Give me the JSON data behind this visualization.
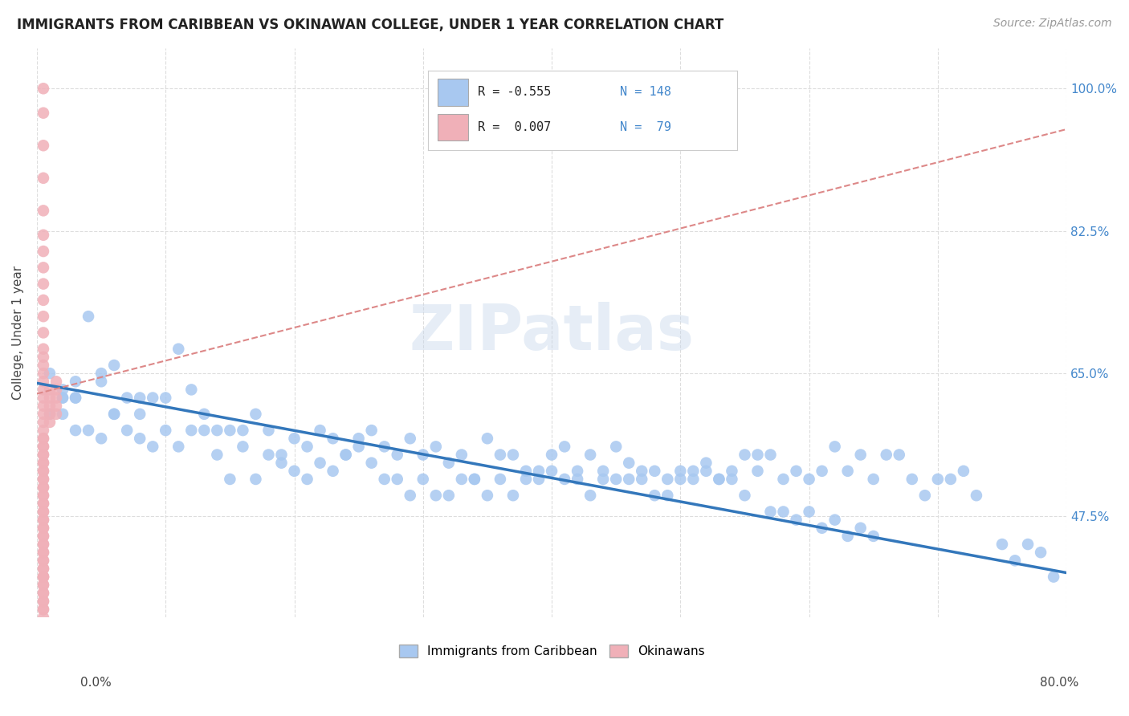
{
  "title": "IMMIGRANTS FROM CARIBBEAN VS OKINAWAN COLLEGE, UNDER 1 YEAR CORRELATION CHART",
  "source": "Source: ZipAtlas.com",
  "ylabel": "College, Under 1 year",
  "watermark": "ZIPatlas",
  "legend_blue_R": "-0.555",
  "legend_blue_N": "148",
  "legend_pink_R": "0.007",
  "legend_pink_N": "79",
  "ytick_labels": [
    "100.0%",
    "82.5%",
    "65.0%",
    "47.5%"
  ],
  "ytick_values": [
    1.0,
    0.825,
    0.65,
    0.475
  ],
  "xlim": [
    0.0,
    0.8
  ],
  "ylim": [
    0.35,
    1.05
  ],
  "blue_color": "#a8c8f0",
  "pink_color": "#f0b0b8",
  "blue_line_color": "#3377bb",
  "pink_line_color": "#dd8888",
  "background_color": "#ffffff",
  "grid_color": "#dddddd",
  "blue_scatter_x": [
    0.02,
    0.03,
    0.04,
    0.05,
    0.01,
    0.02,
    0.03,
    0.06,
    0.08,
    0.02,
    0.03,
    0.05,
    0.06,
    0.07,
    0.08,
    0.09,
    0.1,
    0.11,
    0.12,
    0.13,
    0.14,
    0.15,
    0.16,
    0.17,
    0.18,
    0.19,
    0.2,
    0.21,
    0.22,
    0.23,
    0.24,
    0.25,
    0.26,
    0.27,
    0.28,
    0.29,
    0.3,
    0.31,
    0.32,
    0.33,
    0.34,
    0.35,
    0.36,
    0.37,
    0.38,
    0.39,
    0.4,
    0.41,
    0.42,
    0.43,
    0.44,
    0.45,
    0.46,
    0.47,
    0.48,
    0.49,
    0.5,
    0.51,
    0.52,
    0.53,
    0.54,
    0.55,
    0.56,
    0.57,
    0.58,
    0.59,
    0.6,
    0.61,
    0.62,
    0.63,
    0.64,
    0.65,
    0.66,
    0.67,
    0.68,
    0.69,
    0.7,
    0.71,
    0.72,
    0.73,
    0.01,
    0.02,
    0.03,
    0.04,
    0.05,
    0.06,
    0.07,
    0.08,
    0.09,
    0.1,
    0.11,
    0.12,
    0.13,
    0.14,
    0.15,
    0.16,
    0.17,
    0.18,
    0.19,
    0.2,
    0.21,
    0.22,
    0.23,
    0.24,
    0.25,
    0.26,
    0.27,
    0.28,
    0.29,
    0.3,
    0.31,
    0.32,
    0.33,
    0.34,
    0.35,
    0.36,
    0.37,
    0.38,
    0.39,
    0.4,
    0.41,
    0.42,
    0.43,
    0.44,
    0.45,
    0.46,
    0.47,
    0.48,
    0.49,
    0.5,
    0.51,
    0.52,
    0.53,
    0.54,
    0.55,
    0.56,
    0.57,
    0.58,
    0.59,
    0.6,
    0.61,
    0.62,
    0.63,
    0.64,
    0.65,
    0.75,
    0.76,
    0.77,
    0.78,
    0.79
  ],
  "blue_scatter_y": [
    0.62,
    0.64,
    0.58,
    0.65,
    0.6,
    0.63,
    0.62,
    0.66,
    0.62,
    0.6,
    0.62,
    0.57,
    0.6,
    0.62,
    0.6,
    0.62,
    0.58,
    0.68,
    0.63,
    0.6,
    0.58,
    0.58,
    0.56,
    0.6,
    0.58,
    0.55,
    0.57,
    0.56,
    0.58,
    0.57,
    0.55,
    0.57,
    0.58,
    0.56,
    0.55,
    0.57,
    0.55,
    0.56,
    0.54,
    0.55,
    0.52,
    0.57,
    0.55,
    0.55,
    0.53,
    0.53,
    0.55,
    0.56,
    0.53,
    0.55,
    0.53,
    0.56,
    0.54,
    0.52,
    0.53,
    0.52,
    0.53,
    0.53,
    0.54,
    0.52,
    0.53,
    0.55,
    0.55,
    0.55,
    0.52,
    0.53,
    0.52,
    0.53,
    0.56,
    0.53,
    0.55,
    0.52,
    0.55,
    0.55,
    0.52,
    0.5,
    0.52,
    0.52,
    0.53,
    0.5,
    0.65,
    0.62,
    0.58,
    0.72,
    0.64,
    0.6,
    0.58,
    0.57,
    0.56,
    0.62,
    0.56,
    0.58,
    0.58,
    0.55,
    0.52,
    0.58,
    0.52,
    0.55,
    0.54,
    0.53,
    0.52,
    0.54,
    0.53,
    0.55,
    0.56,
    0.54,
    0.52,
    0.52,
    0.5,
    0.52,
    0.5,
    0.5,
    0.52,
    0.52,
    0.5,
    0.52,
    0.5,
    0.52,
    0.52,
    0.53,
    0.52,
    0.52,
    0.5,
    0.52,
    0.52,
    0.52,
    0.53,
    0.5,
    0.5,
    0.52,
    0.52,
    0.53,
    0.52,
    0.52,
    0.5,
    0.53,
    0.48,
    0.48,
    0.47,
    0.48,
    0.46,
    0.47,
    0.45,
    0.46,
    0.45,
    0.44,
    0.42,
    0.44,
    0.43,
    0.4
  ],
  "pink_scatter_x": [
    0.005,
    0.005,
    0.005,
    0.005,
    0.005,
    0.005,
    0.005,
    0.005,
    0.005,
    0.005,
    0.005,
    0.005,
    0.005,
    0.005,
    0.005,
    0.005,
    0.005,
    0.005,
    0.005,
    0.005,
    0.005,
    0.005,
    0.005,
    0.005,
    0.005,
    0.005,
    0.005,
    0.005,
    0.005,
    0.005,
    0.005,
    0.005,
    0.005,
    0.005,
    0.005,
    0.005,
    0.005,
    0.005,
    0.005,
    0.005,
    0.005,
    0.005,
    0.005,
    0.005,
    0.005,
    0.005,
    0.005,
    0.005,
    0.005,
    0.005,
    0.01,
    0.01,
    0.01,
    0.01,
    0.01,
    0.015,
    0.015,
    0.015,
    0.015,
    0.015,
    0.005,
    0.005,
    0.005,
    0.005,
    0.005,
    0.005,
    0.005,
    0.005,
    0.005,
    0.005,
    0.005,
    0.005,
    0.005,
    0.005,
    0.005,
    0.005,
    0.005,
    0.005,
    0.005
  ],
  "pink_scatter_y": [
    1.0,
    0.97,
    0.93,
    0.89,
    0.85,
    0.82,
    0.8,
    0.78,
    0.76,
    0.74,
    0.72,
    0.7,
    0.68,
    0.67,
    0.66,
    0.65,
    0.64,
    0.63,
    0.62,
    0.61,
    0.6,
    0.59,
    0.57,
    0.56,
    0.55,
    0.54,
    0.53,
    0.52,
    0.51,
    0.5,
    0.49,
    0.48,
    0.47,
    0.46,
    0.45,
    0.44,
    0.43,
    0.42,
    0.41,
    0.4,
    0.39,
    0.38,
    0.37,
    0.36,
    0.35,
    0.36,
    0.37,
    0.38,
    0.39,
    0.4,
    0.63,
    0.62,
    0.61,
    0.6,
    0.59,
    0.64,
    0.63,
    0.62,
    0.61,
    0.6,
    0.58,
    0.57,
    0.56,
    0.55,
    0.54,
    0.53,
    0.52,
    0.51,
    0.5,
    0.49,
    0.48,
    0.47,
    0.46,
    0.45,
    0.44,
    0.43,
    0.42,
    0.41,
    0.4
  ],
  "blue_trendline_x": [
    0.0,
    0.8
  ],
  "blue_trendline_y": [
    0.638,
    0.405
  ],
  "pink_trendline_x": [
    0.0,
    0.8
  ],
  "pink_trendline_y": [
    0.625,
    0.95
  ]
}
